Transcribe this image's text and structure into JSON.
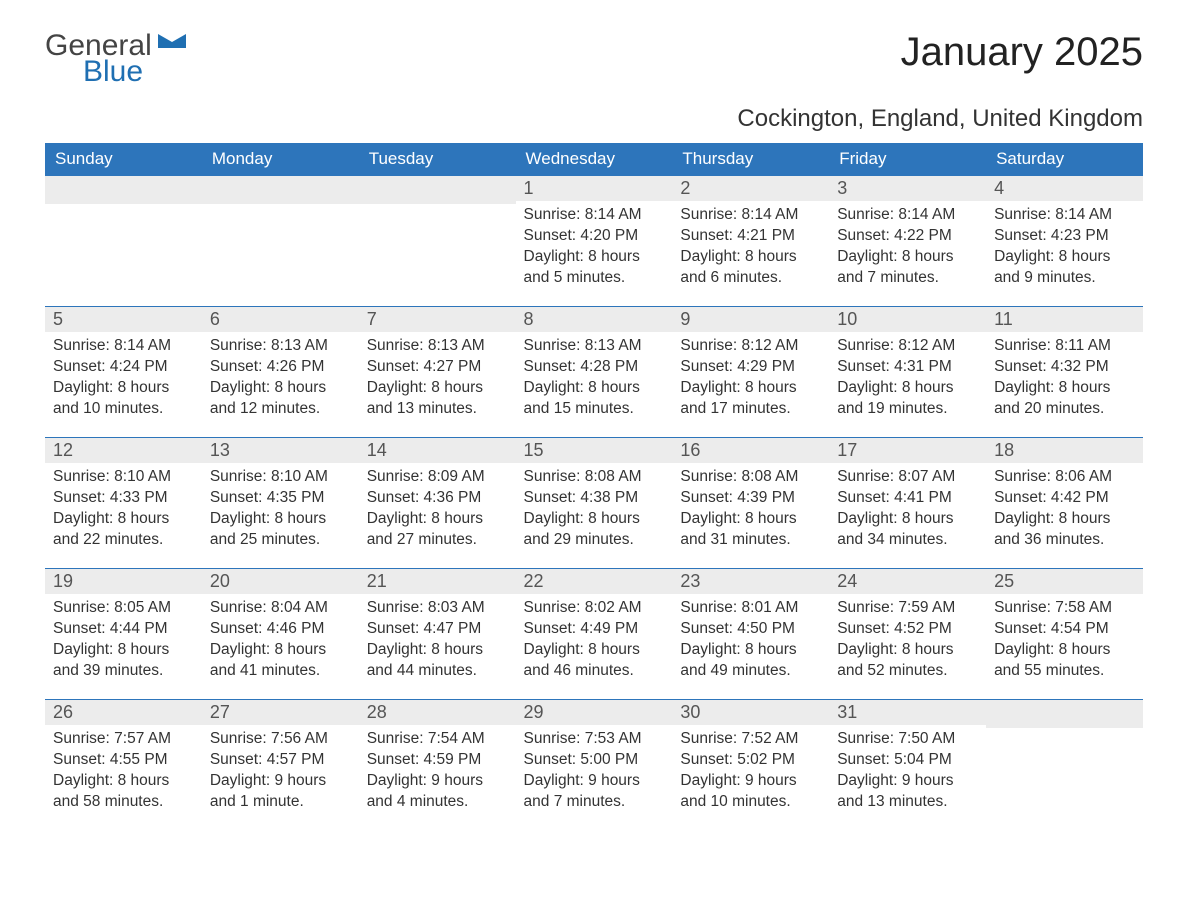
{
  "brand": {
    "word1": "General",
    "word2": "Blue"
  },
  "title": "January 2025",
  "subtitle": "Cockington, England, United Kingdom",
  "colors": {
    "header_bg": "#2d75bb",
    "header_text": "#ffffff",
    "daynum_bg": "#ececec",
    "row_border": "#2d75bb",
    "logo_blue": "#1f6fb2",
    "background": "#ffffff",
    "body_text": "#333333"
  },
  "layout": {
    "type": "calendar-table",
    "columns": 7,
    "rows": 5,
    "first_day_column_index": 3
  },
  "weekdays": [
    "Sunday",
    "Monday",
    "Tuesday",
    "Wednesday",
    "Thursday",
    "Friday",
    "Saturday"
  ],
  "days": [
    {
      "n": "1",
      "sunrise": "8:14 AM",
      "sunset": "4:20 PM",
      "daylight": "8 hours and 5 minutes."
    },
    {
      "n": "2",
      "sunrise": "8:14 AM",
      "sunset": "4:21 PM",
      "daylight": "8 hours and 6 minutes."
    },
    {
      "n": "3",
      "sunrise": "8:14 AM",
      "sunset": "4:22 PM",
      "daylight": "8 hours and 7 minutes."
    },
    {
      "n": "4",
      "sunrise": "8:14 AM",
      "sunset": "4:23 PM",
      "daylight": "8 hours and 9 minutes."
    },
    {
      "n": "5",
      "sunrise": "8:14 AM",
      "sunset": "4:24 PM",
      "daylight": "8 hours and 10 minutes."
    },
    {
      "n": "6",
      "sunrise": "8:13 AM",
      "sunset": "4:26 PM",
      "daylight": "8 hours and 12 minutes."
    },
    {
      "n": "7",
      "sunrise": "8:13 AM",
      "sunset": "4:27 PM",
      "daylight": "8 hours and 13 minutes."
    },
    {
      "n": "8",
      "sunrise": "8:13 AM",
      "sunset": "4:28 PM",
      "daylight": "8 hours and 15 minutes."
    },
    {
      "n": "9",
      "sunrise": "8:12 AM",
      "sunset": "4:29 PM",
      "daylight": "8 hours and 17 minutes."
    },
    {
      "n": "10",
      "sunrise": "8:12 AM",
      "sunset": "4:31 PM",
      "daylight": "8 hours and 19 minutes."
    },
    {
      "n": "11",
      "sunrise": "8:11 AM",
      "sunset": "4:32 PM",
      "daylight": "8 hours and 20 minutes."
    },
    {
      "n": "12",
      "sunrise": "8:10 AM",
      "sunset": "4:33 PM",
      "daylight": "8 hours and 22 minutes."
    },
    {
      "n": "13",
      "sunrise": "8:10 AM",
      "sunset": "4:35 PM",
      "daylight": "8 hours and 25 minutes."
    },
    {
      "n": "14",
      "sunrise": "8:09 AM",
      "sunset": "4:36 PM",
      "daylight": "8 hours and 27 minutes."
    },
    {
      "n": "15",
      "sunrise": "8:08 AM",
      "sunset": "4:38 PM",
      "daylight": "8 hours and 29 minutes."
    },
    {
      "n": "16",
      "sunrise": "8:08 AM",
      "sunset": "4:39 PM",
      "daylight": "8 hours and 31 minutes."
    },
    {
      "n": "17",
      "sunrise": "8:07 AM",
      "sunset": "4:41 PM",
      "daylight": "8 hours and 34 minutes."
    },
    {
      "n": "18",
      "sunrise": "8:06 AM",
      "sunset": "4:42 PM",
      "daylight": "8 hours and 36 minutes."
    },
    {
      "n": "19",
      "sunrise": "8:05 AM",
      "sunset": "4:44 PM",
      "daylight": "8 hours and 39 minutes."
    },
    {
      "n": "20",
      "sunrise": "8:04 AM",
      "sunset": "4:46 PM",
      "daylight": "8 hours and 41 minutes."
    },
    {
      "n": "21",
      "sunrise": "8:03 AM",
      "sunset": "4:47 PM",
      "daylight": "8 hours and 44 minutes."
    },
    {
      "n": "22",
      "sunrise": "8:02 AM",
      "sunset": "4:49 PM",
      "daylight": "8 hours and 46 minutes."
    },
    {
      "n": "23",
      "sunrise": "8:01 AM",
      "sunset": "4:50 PM",
      "daylight": "8 hours and 49 minutes."
    },
    {
      "n": "24",
      "sunrise": "7:59 AM",
      "sunset": "4:52 PM",
      "daylight": "8 hours and 52 minutes."
    },
    {
      "n": "25",
      "sunrise": "7:58 AM",
      "sunset": "4:54 PM",
      "daylight": "8 hours and 55 minutes."
    },
    {
      "n": "26",
      "sunrise": "7:57 AM",
      "sunset": "4:55 PM",
      "daylight": "8 hours and 58 minutes."
    },
    {
      "n": "27",
      "sunrise": "7:56 AM",
      "sunset": "4:57 PM",
      "daylight": "9 hours and 1 minute."
    },
    {
      "n": "28",
      "sunrise": "7:54 AM",
      "sunset": "4:59 PM",
      "daylight": "9 hours and 4 minutes."
    },
    {
      "n": "29",
      "sunrise": "7:53 AM",
      "sunset": "5:00 PM",
      "daylight": "9 hours and 7 minutes."
    },
    {
      "n": "30",
      "sunrise": "7:52 AM",
      "sunset": "5:02 PM",
      "daylight": "9 hours and 10 minutes."
    },
    {
      "n": "31",
      "sunrise": "7:50 AM",
      "sunset": "5:04 PM",
      "daylight": "9 hours and 13 minutes."
    }
  ],
  "labels": {
    "sunrise": "Sunrise: ",
    "sunset": "Sunset: ",
    "daylight": "Daylight: "
  }
}
